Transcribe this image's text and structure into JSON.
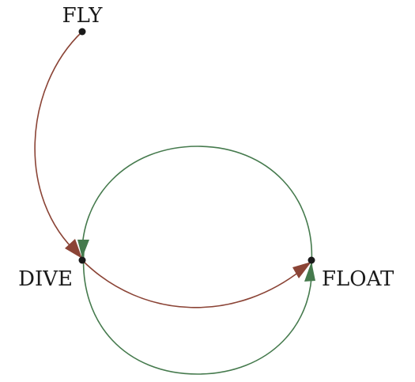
{
  "colors": {
    "edge_brown": "#8b4436",
    "edge_green": "#457a4d",
    "node": "#1a1a1a"
  },
  "nodes": [
    {
      "id": "fly",
      "label": "FLY"
    },
    {
      "id": "dive",
      "label": "DIVE"
    },
    {
      "id": "float",
      "label": "FLOAT"
    }
  ],
  "edges": [
    {
      "from": "fly",
      "to": "dive",
      "color": "brown"
    },
    {
      "from": "dive",
      "to": "float",
      "color": "brown"
    },
    {
      "from": "dive",
      "to": "float",
      "color": "green"
    },
    {
      "from": "float",
      "to": "dive",
      "color": "green"
    }
  ]
}
